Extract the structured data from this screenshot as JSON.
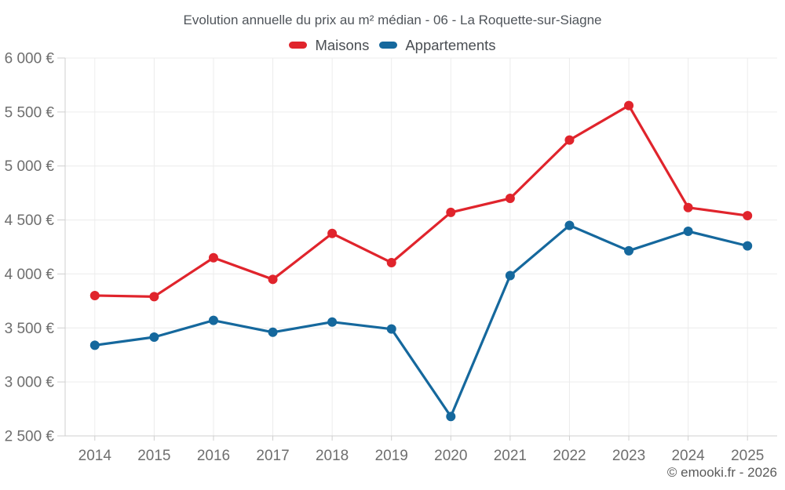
{
  "footer": "© emooki.fr - 2026",
  "chart_data": {
    "type": "line",
    "title": "Evolution annuelle du prix au m² médian - 06 - La Roquette-sur-Siagne",
    "x": [
      2014,
      2015,
      2016,
      2017,
      2018,
      2019,
      2020,
      2021,
      2022,
      2023,
      2024,
      2025
    ],
    "series": [
      {
        "name": "Maisons",
        "color": "#e0242c",
        "values": [
          3800,
          3790,
          4150,
          3950,
          4375,
          4105,
          4570,
          4700,
          5240,
          5560,
          4615,
          4540
        ]
      },
      {
        "name": "Appartements",
        "color": "#15689d",
        "values": [
          3340,
          3415,
          3570,
          3460,
          3555,
          3490,
          2680,
          3985,
          4450,
          4215,
          4395,
          4260
        ]
      }
    ],
    "ylim": [
      2500,
      6000
    ],
    "ytick_step": 500,
    "ytick_suffix": " €",
    "grid": true,
    "legend_position": "top",
    "legend_entries": [
      "Maisons",
      "Appartements"
    ]
  }
}
